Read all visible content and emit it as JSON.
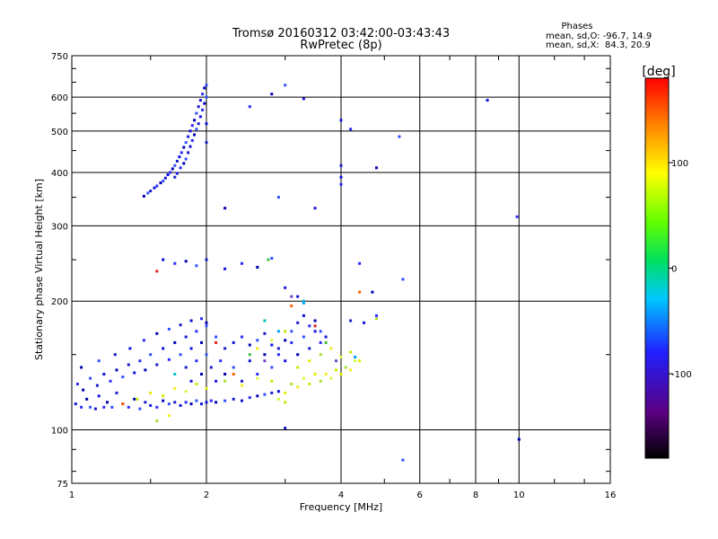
{
  "chart_data": {
    "type": "scatter",
    "title": "Tromsø 20160312 03:42:00-03:43:43",
    "subtitle": "RwPretec (8p)",
    "phases": {
      "heading": "Phases",
      "line_o": "mean, sd,O: -96.7, 14.9",
      "line_x": "mean, sd,X:  84.3, 20.9"
    },
    "xlabel": "Frequency [MHz]",
    "ylabel": "Stationary phase Virtual Height [km]",
    "x_scale": "log",
    "y_scale": "log",
    "xlim": [
      1,
      16
    ],
    "ylim": [
      75,
      750
    ],
    "x_ticks": [
      1,
      2,
      4,
      6,
      8,
      10,
      16
    ],
    "y_ticks": [
      75,
      100,
      200,
      300,
      400,
      500,
      600,
      750
    ],
    "grid": true,
    "colorbar": {
      "label": "[deg]",
      "range": [
        -180,
        180
      ],
      "ticks": [
        100,
        0,
        -100
      ]
    },
    "series": [
      {
        "points": [
          [
            1.02,
            115
          ],
          [
            1.05,
            113
          ],
          [
            1.08,
            118
          ],
          [
            1.1,
            113
          ],
          [
            1.13,
            112
          ],
          [
            1.15,
            120
          ],
          [
            1.18,
            113
          ],
          [
            1.2,
            116
          ],
          [
            1.23,
            113
          ],
          [
            1.26,
            122
          ],
          [
            1.3,
            115
          ],
          [
            1.34,
            113
          ],
          [
            1.38,
            118
          ],
          [
            1.42,
            112
          ],
          [
            1.46,
            116
          ],
          [
            1.5,
            114
          ],
          [
            1.55,
            113
          ],
          [
            1.6,
            117
          ],
          [
            1.65,
            115
          ],
          [
            1.7,
            116
          ],
          [
            1.75,
            114
          ],
          [
            1.8,
            116
          ],
          [
            1.85,
            115
          ],
          [
            1.9,
            117
          ],
          [
            1.95,
            115
          ],
          [
            2.0,
            116
          ],
          [
            2.05,
            117
          ],
          [
            2.1,
            116
          ],
          [
            2.2,
            117
          ],
          [
            2.3,
            118
          ],
          [
            2.4,
            117
          ],
          [
            2.5,
            119
          ],
          [
            2.6,
            120
          ],
          [
            2.7,
            121
          ],
          [
            2.8,
            122
          ],
          [
            2.9,
            123
          ],
          [
            1.03,
            128
          ],
          [
            1.06,
            124
          ],
          [
            1.1,
            132
          ],
          [
            1.14,
            127
          ],
          [
            1.18,
            135
          ],
          [
            1.22,
            130
          ],
          [
            1.26,
            138
          ],
          [
            1.3,
            133
          ],
          [
            1.34,
            142
          ],
          [
            1.38,
            136
          ],
          [
            1.42,
            145
          ],
          [
            1.46,
            138
          ],
          [
            1.5,
            150
          ],
          [
            1.55,
            142
          ],
          [
            1.6,
            155
          ],
          [
            1.65,
            146
          ],
          [
            1.7,
            160
          ],
          [
            1.75,
            150
          ],
          [
            1.8,
            165
          ],
          [
            1.85,
            155
          ],
          [
            1.9,
            170
          ],
          [
            1.95,
            160
          ],
          [
            2.0,
            175
          ],
          [
            1.8,
            140
          ],
          [
            1.85,
            130
          ],
          [
            1.9,
            145
          ],
          [
            1.95,
            135
          ],
          [
            2.0,
            150
          ],
          [
            2.05,
            140
          ],
          [
            2.1,
            130
          ],
          [
            2.15,
            145
          ],
          [
            2.2,
            135
          ],
          [
            2.3,
            140
          ],
          [
            2.4,
            130
          ],
          [
            2.5,
            145
          ],
          [
            2.6,
            135
          ],
          [
            2.7,
            150
          ],
          [
            2.8,
            140
          ],
          [
            2.9,
            155
          ],
          [
            3.0,
            145
          ],
          [
            3.1,
            160
          ],
          [
            3.2,
            150
          ],
          [
            3.3,
            165
          ],
          [
            3.4,
            155
          ],
          [
            3.5,
            170
          ],
          [
            3.6,
            160
          ],
          [
            1.05,
            140
          ],
          [
            1.15,
            145
          ],
          [
            1.25,
            150
          ],
          [
            1.35,
            155
          ],
          [
            1.45,
            162
          ],
          [
            1.55,
            168
          ],
          [
            1.65,
            172
          ],
          [
            1.75,
            176
          ],
          [
            1.85,
            180
          ],
          [
            1.95,
            182
          ],
          [
            2.0,
            178
          ],
          [
            2.1,
            165
          ],
          [
            2.2,
            155
          ],
          [
            2.3,
            160
          ],
          [
            2.4,
            165
          ],
          [
            2.5,
            158
          ],
          [
            2.6,
            162
          ],
          [
            2.7,
            168
          ],
          [
            2.8,
            158
          ],
          [
            2.9,
            150
          ],
          [
            3.0,
            162
          ],
          [
            3.1,
            170
          ],
          [
            3.2,
            178
          ],
          [
            3.3,
            185
          ],
          [
            3.4,
            175
          ],
          [
            3.5,
            180
          ],
          [
            3.6,
            170
          ],
          [
            3.7,
            165
          ],
          [
            1.6,
            250
          ],
          [
            1.7,
            245
          ],
          [
            1.8,
            248
          ],
          [
            1.9,
            242
          ],
          [
            2.0,
            250
          ],
          [
            2.2,
            238
          ],
          [
            2.4,
            245
          ],
          [
            2.6,
            240
          ],
          [
            2.8,
            252
          ],
          [
            3.0,
            215
          ],
          [
            3.2,
            205
          ],
          [
            4.4,
            245
          ],
          [
            4.7,
            210
          ],
          [
            5.5,
            225
          ],
          [
            4.2,
            180
          ],
          [
            4.5,
            178
          ],
          [
            4.8,
            185
          ],
          [
            1.45,
            352
          ],
          [
            1.48,
            358
          ],
          [
            1.5,
            362
          ],
          [
            1.53,
            368
          ],
          [
            1.55,
            372
          ],
          [
            1.58,
            378
          ],
          [
            1.6,
            382
          ],
          [
            1.62,
            388
          ],
          [
            1.64,
            395
          ],
          [
            1.66,
            400
          ],
          [
            1.68,
            408
          ],
          [
            1.7,
            415
          ],
          [
            1.72,
            425
          ],
          [
            1.74,
            435
          ],
          [
            1.76,
            445
          ],
          [
            1.78,
            458
          ],
          [
            1.8,
            470
          ],
          [
            1.82,
            485
          ],
          [
            1.84,
            500
          ],
          [
            1.86,
            515
          ],
          [
            1.88,
            530
          ],
          [
            1.9,
            550
          ],
          [
            1.92,
            570
          ],
          [
            1.94,
            590
          ],
          [
            1.96,
            610
          ],
          [
            1.98,
            630
          ],
          [
            2.0,
            640
          ],
          [
            1.7,
            390
          ],
          [
            1.72,
            398
          ],
          [
            1.75,
            410
          ],
          [
            1.78,
            420
          ],
          [
            1.8,
            430
          ],
          [
            1.82,
            445
          ],
          [
            1.84,
            460
          ],
          [
            1.86,
            475
          ],
          [
            1.88,
            490
          ],
          [
            1.9,
            505
          ],
          [
            1.92,
            520
          ],
          [
            1.94,
            540
          ],
          [
            1.96,
            560
          ],
          [
            1.98,
            580
          ],
          [
            2.0,
            600
          ],
          [
            2.0,
            470
          ],
          [
            2.0,
            520
          ],
          [
            2.5,
            570
          ],
          [
            2.8,
            610
          ],
          [
            3.0,
            640
          ],
          [
            3.3,
            595
          ],
          [
            4.0,
            530
          ],
          [
            4.2,
            505
          ],
          [
            4.8,
            410
          ],
          [
            5.4,
            485
          ],
          [
            4.0,
            415
          ],
          [
            4.0,
            390
          ],
          [
            4.0,
            375
          ],
          [
            2.2,
            330
          ],
          [
            2.9,
            350
          ],
          [
            3.5,
            330
          ],
          [
            8.5,
            590
          ],
          [
            9.9,
            315
          ],
          [
            10.0,
            95
          ],
          [
            5.5,
            85
          ],
          [
            3.0,
            101
          ]
        ]
      },
      {
        "points": [
          [
            1.4,
            118
          ],
          [
            1.5,
            122
          ],
          [
            1.6,
            120
          ],
          [
            1.7,
            125
          ],
          [
            1.8,
            123
          ],
          [
            1.9,
            128
          ],
          [
            2.0,
            125
          ],
          [
            2.2,
            130
          ],
          [
            2.4,
            127
          ],
          [
            2.6,
            132
          ],
          [
            2.8,
            130
          ],
          [
            3.0,
            122
          ],
          [
            3.1,
            128
          ],
          [
            3.2,
            126
          ],
          [
            3.3,
            132
          ],
          [
            3.4,
            128
          ],
          [
            3.5,
            135
          ],
          [
            3.6,
            130
          ],
          [
            3.7,
            135
          ],
          [
            3.8,
            132
          ],
          [
            3.9,
            138
          ],
          [
            4.0,
            135
          ],
          [
            4.1,
            140
          ],
          [
            4.2,
            138
          ],
          [
            4.3,
            145
          ],
          [
            3.2,
            140
          ],
          [
            3.4,
            145
          ],
          [
            3.6,
            150
          ],
          [
            3.8,
            155
          ],
          [
            4.0,
            148
          ],
          [
            4.2,
            152
          ],
          [
            4.4,
            145
          ],
          [
            4.8,
            182
          ],
          [
            2.6,
            155
          ],
          [
            2.8,
            162
          ],
          [
            3.0,
            170
          ],
          [
            1.6,
            120
          ],
          [
            1.55,
            105
          ],
          [
            1.65,
            108
          ],
          [
            2.9,
            118
          ],
          [
            3.0,
            116
          ]
        ]
      },
      {
        "points": [
          [
            1.3,
            115
          ],
          [
            1.7,
            135
          ],
          [
            2.1,
            160
          ],
          [
            2.5,
            150
          ],
          [
            2.7,
            145
          ],
          [
            2.9,
            170
          ],
          [
            3.1,
            195
          ],
          [
            3.3,
            200
          ],
          [
            3.5,
            175
          ],
          [
            3.7,
            160
          ],
          [
            3.9,
            145
          ],
          [
            4.3,
            148
          ],
          [
            2.3,
            135
          ],
          [
            2.7,
            180
          ],
          [
            1.55,
            235
          ],
          [
            2.75,
            250
          ],
          [
            3.1,
            205
          ],
          [
            3.3,
            198
          ],
          [
            4.4,
            210
          ]
        ]
      }
    ]
  }
}
